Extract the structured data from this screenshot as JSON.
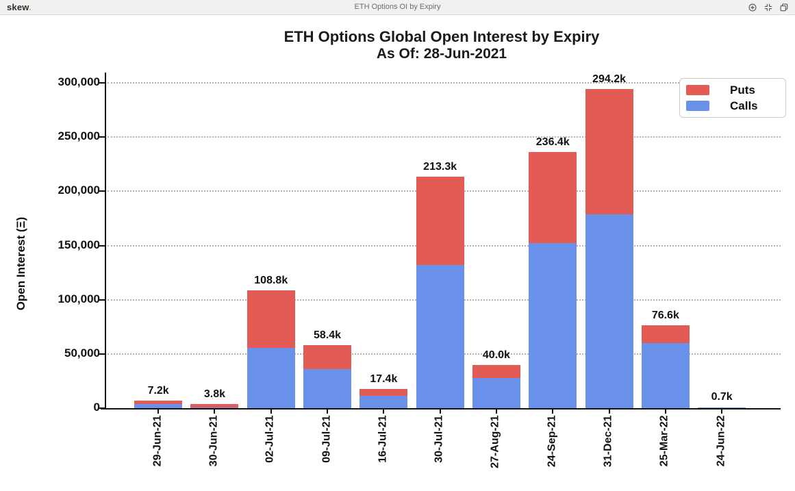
{
  "header": {
    "logo": "skew",
    "logo_dot": ".",
    "title": "ETH Options OI by Expiry",
    "icons": [
      "zoom-in",
      "resize",
      "copy"
    ]
  },
  "chart_data": {
    "type": "bar",
    "stacked": true,
    "title": "ETH Options Global Open Interest by Expiry",
    "subtitle": "As Of: 28-Jun-2021",
    "ylabel": "Open Interest (Ξ)",
    "ylim": [
      0,
      300000
    ],
    "grid": "dotted-horizontal",
    "legend_position": "top-right",
    "legend": [
      "Puts",
      "Calls"
    ],
    "series_colors": {
      "Calls": "#6A91E9",
      "Puts": "#E25B55"
    },
    "yticks": [
      {
        "value": 0,
        "label": "0"
      },
      {
        "value": 50000,
        "label": "50,000"
      },
      {
        "value": 100000,
        "label": "100,000"
      },
      {
        "value": 150000,
        "label": "150,000"
      },
      {
        "value": 200000,
        "label": "200,000"
      },
      {
        "value": 250000,
        "label": "250,000"
      },
      {
        "value": 300000,
        "label": "300,000"
      }
    ],
    "categories": [
      {
        "label": "29-Jun-21",
        "calls": 4000,
        "puts": 3200,
        "total": 7200,
        "total_label": "7.2k"
      },
      {
        "label": "30-Jun-21",
        "calls": 800,
        "puts": 3000,
        "total": 3800,
        "total_label": "3.8k"
      },
      {
        "label": "02-Jul-21",
        "calls": 55500,
        "puts": 53300,
        "total": 108800,
        "total_label": "108.8k"
      },
      {
        "label": "09-Jul-21",
        "calls": 36000,
        "puts": 22400,
        "total": 58400,
        "total_label": "58.4k"
      },
      {
        "label": "16-Jul-21",
        "calls": 11500,
        "puts": 5900,
        "total": 17400,
        "total_label": "17.4k"
      },
      {
        "label": "30-Jul-21",
        "calls": 132000,
        "puts": 81300,
        "total": 213300,
        "total_label": "213.3k"
      },
      {
        "label": "27-Aug-21",
        "calls": 28000,
        "puts": 12000,
        "total": 40000,
        "total_label": "40.0k"
      },
      {
        "label": "24-Sep-21",
        "calls": 152000,
        "puts": 84400,
        "total": 236400,
        "total_label": "236.4k"
      },
      {
        "label": "31-Dec-21",
        "calls": 179000,
        "puts": 115200,
        "total": 294200,
        "total_label": "294.2k"
      },
      {
        "label": "25-Mar-22",
        "calls": 60000,
        "puts": 16600,
        "total": 76600,
        "total_label": "76.6k"
      },
      {
        "label": "24-Jun-22",
        "calls": 600,
        "puts": 100,
        "total": 700,
        "total_label": "0.7k"
      }
    ]
  }
}
